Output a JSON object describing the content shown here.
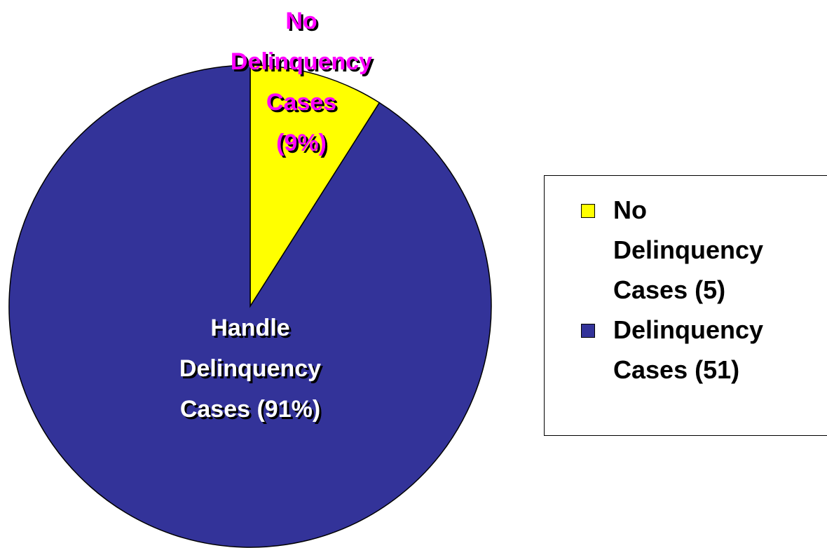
{
  "chart_data": {
    "type": "pie",
    "categories": [
      "No Delinquency Cases (5)",
      "Delinquency Cases (51)"
    ],
    "values": [
      9,
      91
    ],
    "colors": [
      "#ffff00",
      "#333399"
    ],
    "slice_labels": [
      [
        "No",
        "Delinquency",
        "Cases",
        "(9%)"
      ],
      [
        "Handle",
        "Delinquency",
        "Cases (91%)"
      ]
    ],
    "slice_label_colors": [
      "#ff00ff",
      "#ffffff"
    ]
  }
}
